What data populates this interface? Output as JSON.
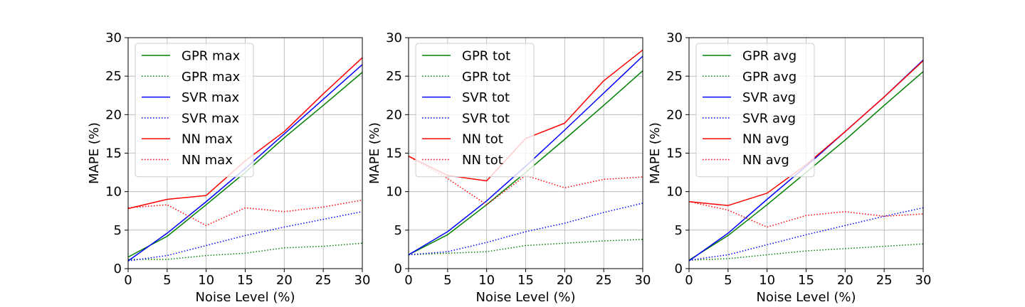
{
  "chart_data": [
    {
      "type": "line",
      "xlabel": "Noise Level (%)",
      "ylabel": "MAPE (%)",
      "xlim": [
        0,
        30
      ],
      "ylim": [
        0,
        30
      ],
      "xticks": [
        "0",
        "5",
        "10",
        "15",
        "20",
        "25",
        "30"
      ],
      "yticks": [
        "0",
        "5",
        "10",
        "15",
        "20",
        "25",
        "30"
      ],
      "grid": true,
      "legend_position": "top-left",
      "x": [
        0,
        5,
        10,
        15,
        20,
        25,
        30
      ],
      "series": [
        {
          "name": "GPR max",
          "color": "#008000",
          "style": "solid",
          "values": [
            1.5,
            4.2,
            8.3,
            12.5,
            17.0,
            21.2,
            25.5
          ]
        },
        {
          "name": "GPR max",
          "color": "#008000",
          "style": "dotted",
          "values": [
            1.2,
            1.2,
            1.7,
            2.0,
            2.7,
            2.9,
            3.3
          ]
        },
        {
          "name": "SVR max",
          "color": "#0000ff",
          "style": "solid",
          "values": [
            1.0,
            4.6,
            8.7,
            13.0,
            17.5,
            22.0,
            26.5
          ]
        },
        {
          "name": "SVR max",
          "color": "#0000ff",
          "style": "dotted",
          "values": [
            1.0,
            1.7,
            3.0,
            4.3,
            5.4,
            6.4,
            7.4
          ]
        },
        {
          "name": "NN max",
          "color": "#ff0000",
          "style": "solid",
          "values": [
            7.8,
            9.0,
            9.5,
            14.0,
            17.8,
            22.7,
            27.4
          ]
        },
        {
          "name": "NN max",
          "color": "#ff0000",
          "style": "dotted",
          "values": [
            7.9,
            8.3,
            5.6,
            7.9,
            7.4,
            8.0,
            8.9
          ]
        }
      ]
    },
    {
      "type": "line",
      "xlabel": "Noise Level (%)",
      "ylabel": "MAPE (%)",
      "xlim": [
        0,
        30
      ],
      "ylim": [
        0,
        30
      ],
      "xticks": [
        "0",
        "5",
        "10",
        "15",
        "20",
        "25",
        "30"
      ],
      "yticks": [
        "0",
        "5",
        "10",
        "15",
        "20",
        "25",
        "30"
      ],
      "grid": true,
      "legend_position": "top-left",
      "x": [
        0,
        5,
        10,
        15,
        20,
        25,
        30
      ],
      "series": [
        {
          "name": "GPR tot",
          "color": "#008000",
          "style": "solid",
          "values": [
            1.8,
            4.4,
            8.3,
            12.5,
            16.8,
            21.2,
            25.7
          ]
        },
        {
          "name": "GPR tot",
          "color": "#008000",
          "style": "dotted",
          "values": [
            1.8,
            2.0,
            2.2,
            3.0,
            3.3,
            3.6,
            3.8
          ]
        },
        {
          "name": "SVR tot",
          "color": "#0000ff",
          "style": "solid",
          "values": [
            1.8,
            4.8,
            8.8,
            13.3,
            18.0,
            22.8,
            27.6
          ]
        },
        {
          "name": "SVR tot",
          "color": "#0000ff",
          "style": "dotted",
          "values": [
            1.8,
            2.2,
            3.4,
            4.8,
            5.9,
            7.3,
            8.5
          ]
        },
        {
          "name": "NN tot",
          "color": "#ff0000",
          "style": "solid",
          "values": [
            14.6,
            12.1,
            11.4,
            16.9,
            18.9,
            24.4,
            28.4
          ]
        },
        {
          "name": "NN tot",
          "color": "#ff0000",
          "style": "dotted",
          "values": [
            14.6,
            11.7,
            8.3,
            12.1,
            10.5,
            11.6,
            11.9
          ]
        }
      ]
    },
    {
      "type": "line",
      "xlabel": "Noise Level (%)",
      "ylabel": "MAPE (%)",
      "xlim": [
        0,
        30
      ],
      "ylim": [
        0,
        30
      ],
      "xticks": [
        "0",
        "5",
        "10",
        "15",
        "20",
        "25",
        "30"
      ],
      "yticks": [
        "0",
        "5",
        "10",
        "15",
        "20",
        "25",
        "30"
      ],
      "grid": true,
      "legend_position": "top-left",
      "x": [
        0,
        5,
        10,
        15,
        20,
        25,
        30
      ],
      "series": [
        {
          "name": "GPR avg",
          "color": "#008000",
          "style": "solid",
          "values": [
            1.1,
            4.3,
            8.3,
            12.5,
            16.7,
            21.2,
            25.6
          ]
        },
        {
          "name": "GPR avg",
          "color": "#008000",
          "style": "dotted",
          "values": [
            1.1,
            1.3,
            1.8,
            2.3,
            2.6,
            2.9,
            3.2
          ]
        },
        {
          "name": "SVR avg",
          "color": "#0000ff",
          "style": "solid",
          "values": [
            1.0,
            4.6,
            9.0,
            13.3,
            17.8,
            22.3,
            27.1
          ]
        },
        {
          "name": "SVR avg",
          "color": "#0000ff",
          "style": "dotted",
          "values": [
            1.1,
            1.8,
            3.1,
            4.4,
            5.6,
            6.8,
            7.9
          ]
        },
        {
          "name": "NN avg",
          "color": "#ff0000",
          "style": "solid",
          "values": [
            8.7,
            8.2,
            9.8,
            13.5,
            17.8,
            22.3,
            27.0
          ]
        },
        {
          "name": "NN avg",
          "color": "#ff0000",
          "style": "dotted",
          "values": [
            8.7,
            7.6,
            5.4,
            6.9,
            7.4,
            6.8,
            7.1
          ]
        }
      ]
    }
  ]
}
